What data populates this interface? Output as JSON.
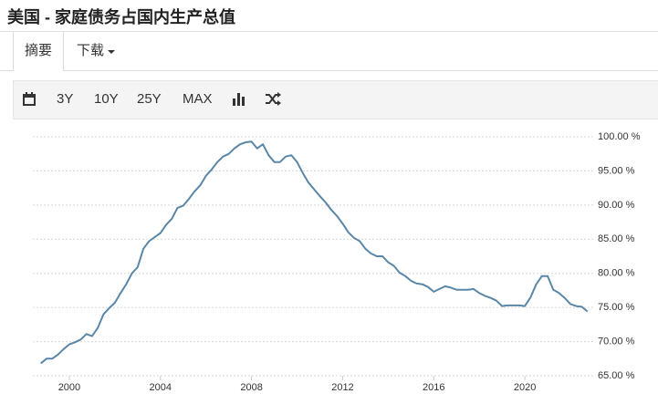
{
  "header": {
    "title": "美国 - 家庭债务占国内生产总值"
  },
  "tabs": [
    "摘要",
    "下载"
  ],
  "toolbar": [
    "3Y",
    "10Y",
    "25Y",
    "MAX"
  ],
  "chart_data": {
    "type": "line",
    "color": "#5a86a8",
    "grid": true,
    "xlim": [
      1998.4,
      2023
    ],
    "xticks": [
      2000,
      2004,
      2008,
      2012,
      2016,
      2020
    ],
    "ylim": [
      65,
      100
    ],
    "yticks": [
      {
        "value": 65,
        "label": "65.00 %"
      },
      {
        "value": 70,
        "label": "70.00 %"
      },
      {
        "value": 75,
        "label": "75.00 %"
      },
      {
        "value": 80,
        "label": "80.00 %"
      },
      {
        "value": 85,
        "label": "85.00 %"
      },
      {
        "value": 90,
        "label": "90.00 %"
      },
      {
        "value": 95,
        "label": "95.00 %"
      },
      {
        "value": 100,
        "label": "100.00 %"
      }
    ],
    "x": [
      1998.75,
      1999,
      1999.25,
      1999.5,
      1999.75,
      2000,
      2000.25,
      2000.5,
      2000.75,
      2001,
      2001.25,
      2001.5,
      2001.75,
      2002,
      2002.25,
      2002.5,
      2002.75,
      2003,
      2003.25,
      2003.5,
      2003.75,
      2004,
      2004.25,
      2004.5,
      2004.75,
      2005,
      2005.25,
      2005.5,
      2005.75,
      2006,
      2006.25,
      2006.5,
      2006.75,
      2007,
      2007.25,
      2007.5,
      2007.75,
      2008,
      2008.25,
      2008.5,
      2008.75,
      2009,
      2009.25,
      2009.5,
      2009.75,
      2010,
      2010.25,
      2010.5,
      2010.75,
      2011,
      2011.25,
      2011.5,
      2011.75,
      2012,
      2012.25,
      2012.5,
      2012.75,
      2013,
      2013.25,
      2013.5,
      2013.75,
      2014,
      2014.25,
      2014.5,
      2014.75,
      2015,
      2015.25,
      2015.5,
      2015.75,
      2016,
      2016.25,
      2016.5,
      2016.75,
      2017,
      2017.25,
      2017.5,
      2017.75,
      2018,
      2018.25,
      2018.5,
      2018.75,
      2019,
      2019.25,
      2019.5,
      2019.75,
      2020,
      2020.25,
      2020.5,
      2020.75,
      2021,
      2021.25,
      2021.5,
      2021.75,
      2022,
      2022.25,
      2022.5,
      2022.75
    ],
    "values": [
      66.8,
      67.5,
      67.5,
      68.1,
      68.9,
      69.6,
      69.9,
      70.3,
      71.1,
      70.8,
      72.0,
      74.0,
      74.9,
      75.7,
      77.1,
      78.4,
      80.0,
      80.9,
      83.6,
      84.7,
      85.3,
      85.9,
      87.1,
      88.0,
      89.6,
      89.9,
      90.9,
      92.0,
      92.9,
      94.3,
      95.2,
      96.3,
      97.1,
      97.5,
      98.3,
      98.9,
      99.2,
      99.3,
      98.3,
      98.9,
      97.3,
      96.3,
      96.3,
      97.1,
      97.3,
      96.3,
      94.7,
      93.3,
      92.3,
      91.3,
      90.4,
      89.3,
      88.4,
      87.3,
      86.0,
      85.2,
      84.7,
      83.6,
      82.9,
      82.5,
      82.5,
      81.6,
      81.1,
      80.1,
      79.6,
      78.9,
      78.5,
      78.4,
      78.0,
      77.3,
      77.7,
      78.1,
      77.9,
      77.6,
      77.6,
      77.6,
      77.7,
      77.1,
      76.7,
      76.4,
      76.0,
      75.2,
      75.3,
      75.3,
      75.3,
      75.2,
      76.5,
      78.4,
      79.6,
      79.6,
      77.6,
      77.1,
      76.4,
      75.5,
      75.2,
      75.1,
      74.4
    ]
  }
}
